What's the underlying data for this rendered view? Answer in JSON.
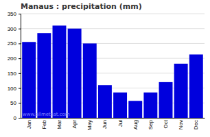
{
  "chart_data": {
    "type": "bar",
    "title": "Manaus : precipitation (mm)",
    "categories": [
      "Jan",
      "Feb",
      "Mar",
      "Apr",
      "May",
      "Jun",
      "Jul",
      "Aug",
      "Sep",
      "Oct",
      "Nov",
      "Dec"
    ],
    "values": [
      255,
      285,
      310,
      300,
      250,
      110,
      85,
      57,
      85,
      120,
      182,
      213
    ],
    "color": "#0000dd",
    "ylim": [
      0,
      350
    ],
    "yticks": [
      0,
      50,
      100,
      150,
      200,
      250,
      300,
      350
    ],
    "grid": true,
    "annotations": [
      "www.allmetsat.com"
    ]
  }
}
